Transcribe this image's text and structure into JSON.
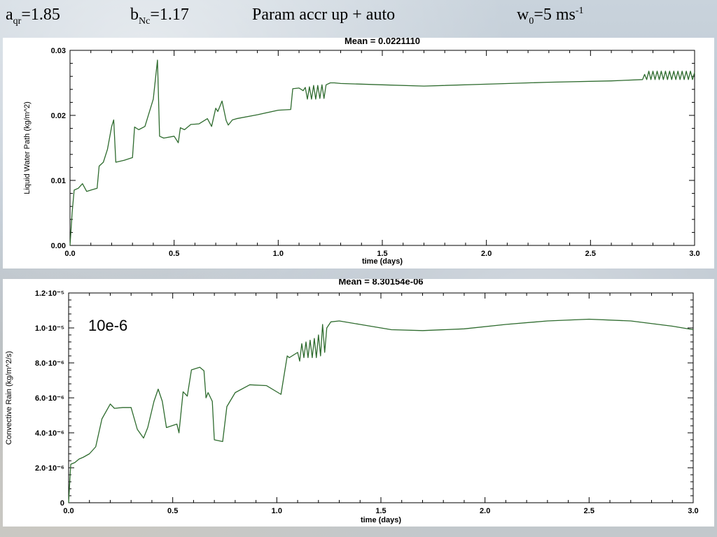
{
  "header": {
    "aqr": {
      "base": "a",
      "sub": "qr",
      "rest": "=1.85"
    },
    "bnc": {
      "base": "b",
      "sub": "Nc",
      "rest": "=1.17"
    },
    "title": "Param accr up + auto",
    "w0": {
      "base": "w",
      "sub": "0",
      "mid": "=5 ms",
      "sup": "-1"
    }
  },
  "colors": {
    "line": "#2e6b2e",
    "axis": "#000000"
  },
  "chart_data": [
    {
      "type": "line",
      "title": "Mean = 0.0221110",
      "xlabel": "time (days)",
      "ylabel": "Liquid Water Path (kg/m^2)",
      "xlim": [
        0,
        3
      ],
      "ylim": [
        0,
        0.03
      ],
      "xticks": [
        "0.0",
        "0.5",
        "1.0",
        "1.5",
        "2.0",
        "2.5",
        "3.0"
      ],
      "yticks": [
        "0.00",
        "0.01",
        "0.02",
        "0.03"
      ],
      "x": [
        0,
        0.01,
        0.02,
        0.04,
        0.06,
        0.08,
        0.1,
        0.13,
        0.14,
        0.16,
        0.18,
        0.2,
        0.21,
        0.22,
        0.26,
        0.3,
        0.31,
        0.33,
        0.36,
        0.4,
        0.42,
        0.43,
        0.45,
        0.5,
        0.52,
        0.53,
        0.55,
        0.58,
        0.62,
        0.66,
        0.68,
        0.7,
        0.71,
        0.73,
        0.75,
        0.76,
        0.78,
        0.8,
        0.9,
        1.0,
        1.06,
        1.07,
        1.1,
        1.12,
        1.13,
        1.14,
        1.15,
        1.16,
        1.17,
        1.18,
        1.19,
        1.2,
        1.21,
        1.22,
        1.23,
        1.25,
        1.27,
        1.3,
        1.5,
        1.7,
        2.0,
        2.3,
        2.6,
        2.75,
        2.76,
        2.77,
        2.78,
        2.79,
        2.8,
        2.81,
        2.82,
        2.83,
        2.84,
        2.85,
        2.86,
        2.87,
        2.88,
        2.89,
        2.9,
        2.91,
        2.92,
        2.93,
        2.94,
        2.95,
        2.96,
        2.97,
        2.98,
        2.99,
        3.0
      ],
      "y": [
        0.0,
        0.005,
        0.0085,
        0.0088,
        0.0095,
        0.0083,
        0.0085,
        0.0088,
        0.0122,
        0.0128,
        0.0148,
        0.0183,
        0.0193,
        0.0128,
        0.0131,
        0.0135,
        0.0182,
        0.0178,
        0.0183,
        0.0225,
        0.0285,
        0.0168,
        0.0165,
        0.0168,
        0.0158,
        0.0181,
        0.0178,
        0.0186,
        0.0187,
        0.0195,
        0.0183,
        0.0211,
        0.0206,
        0.0222,
        0.0192,
        0.0185,
        0.0193,
        0.0195,
        0.0201,
        0.0208,
        0.0209,
        0.0241,
        0.0242,
        0.0238,
        0.0243,
        0.0225,
        0.0244,
        0.0225,
        0.0246,
        0.0225,
        0.0246,
        0.0226,
        0.0247,
        0.0226,
        0.0247,
        0.025,
        0.025,
        0.0249,
        0.0247,
        0.0245,
        0.0248,
        0.0251,
        0.0253,
        0.0255,
        0.0263,
        0.0255,
        0.0268,
        0.0255,
        0.0268,
        0.0255,
        0.0268,
        0.0255,
        0.0268,
        0.0255,
        0.0268,
        0.0255,
        0.0268,
        0.0255,
        0.0268,
        0.0255,
        0.0268,
        0.0255,
        0.0268,
        0.0255,
        0.0268,
        0.0255,
        0.0268,
        0.0255,
        0.0266
      ]
    },
    {
      "type": "line",
      "title": "Mean = 8.30154e-06",
      "xlabel": "time (days)",
      "ylabel": "Convective Rain (kg/m^2/s)",
      "annotation": "10e-6",
      "xlim": [
        0,
        3
      ],
      "ylim": [
        0,
        1.2e-05
      ],
      "xticks": [
        "0.0",
        "0.5",
        "1.0",
        "1.5",
        "2.0",
        "2.5",
        "3.0"
      ],
      "yticks": [
        "0",
        "2.0·10⁻⁶",
        "4.0·10⁻⁶",
        "6.0·10⁻⁶",
        "8.0·10⁻⁶",
        "1.0·10⁻⁵",
        "1.2·10⁻⁵"
      ],
      "x": [
        0,
        0.01,
        0.03,
        0.05,
        0.07,
        0.1,
        0.13,
        0.16,
        0.2,
        0.22,
        0.26,
        0.3,
        0.33,
        0.36,
        0.38,
        0.41,
        0.43,
        0.45,
        0.47,
        0.52,
        0.53,
        0.55,
        0.57,
        0.59,
        0.63,
        0.65,
        0.66,
        0.67,
        0.69,
        0.7,
        0.74,
        0.76,
        0.8,
        0.87,
        0.95,
        1.02,
        1.05,
        1.06,
        1.1,
        1.11,
        1.12,
        1.13,
        1.14,
        1.15,
        1.16,
        1.17,
        1.18,
        1.19,
        1.2,
        1.21,
        1.22,
        1.23,
        1.24,
        1.26,
        1.3,
        1.4,
        1.55,
        1.7,
        1.9,
        2.1,
        2.3,
        2.5,
        2.7,
        2.9,
        3.0
      ],
      "y": [
        0.0,
        2.2e-06,
        2.3e-06,
        2.5e-06,
        2.6e-06,
        2.8e-06,
        3.2e-06,
        4.8e-06,
        5.65e-06,
        5.4e-06,
        5.45e-06,
        5.45e-06,
        4.2e-06,
        3.7e-06,
        4.3e-06,
        5.8e-06,
        6.5e-06,
        5.8e-06,
        4.3e-06,
        4.5e-06,
        4e-06,
        6.35e-06,
        6.1e-06,
        7.6e-06,
        7.75e-06,
        7.55e-06,
        6e-06,
        6.3e-06,
        5.8e-06,
        3.6e-06,
        3.5e-06,
        5.5e-06,
        6.3e-06,
        6.75e-06,
        6.7e-06,
        6.2e-06,
        8.4e-06,
        8.3e-06,
        8.6e-06,
        8.1e-06,
        9.1e-06,
        8.3e-06,
        9.2e-06,
        8.3e-06,
        9.3e-06,
        8.3e-06,
        9.4e-06,
        8.3e-06,
        9.6e-06,
        8.4e-06,
        1.02e-05,
        8.6e-06,
        1e-05,
        1.035e-05,
        1.04e-05,
        1.02e-05,
        9.9e-06,
        9.85e-06,
        9.95e-06,
        1.02e-05,
        1.04e-05,
        1.05e-05,
        1.04e-05,
        1.01e-05,
        9.9e-06
      ]
    }
  ]
}
